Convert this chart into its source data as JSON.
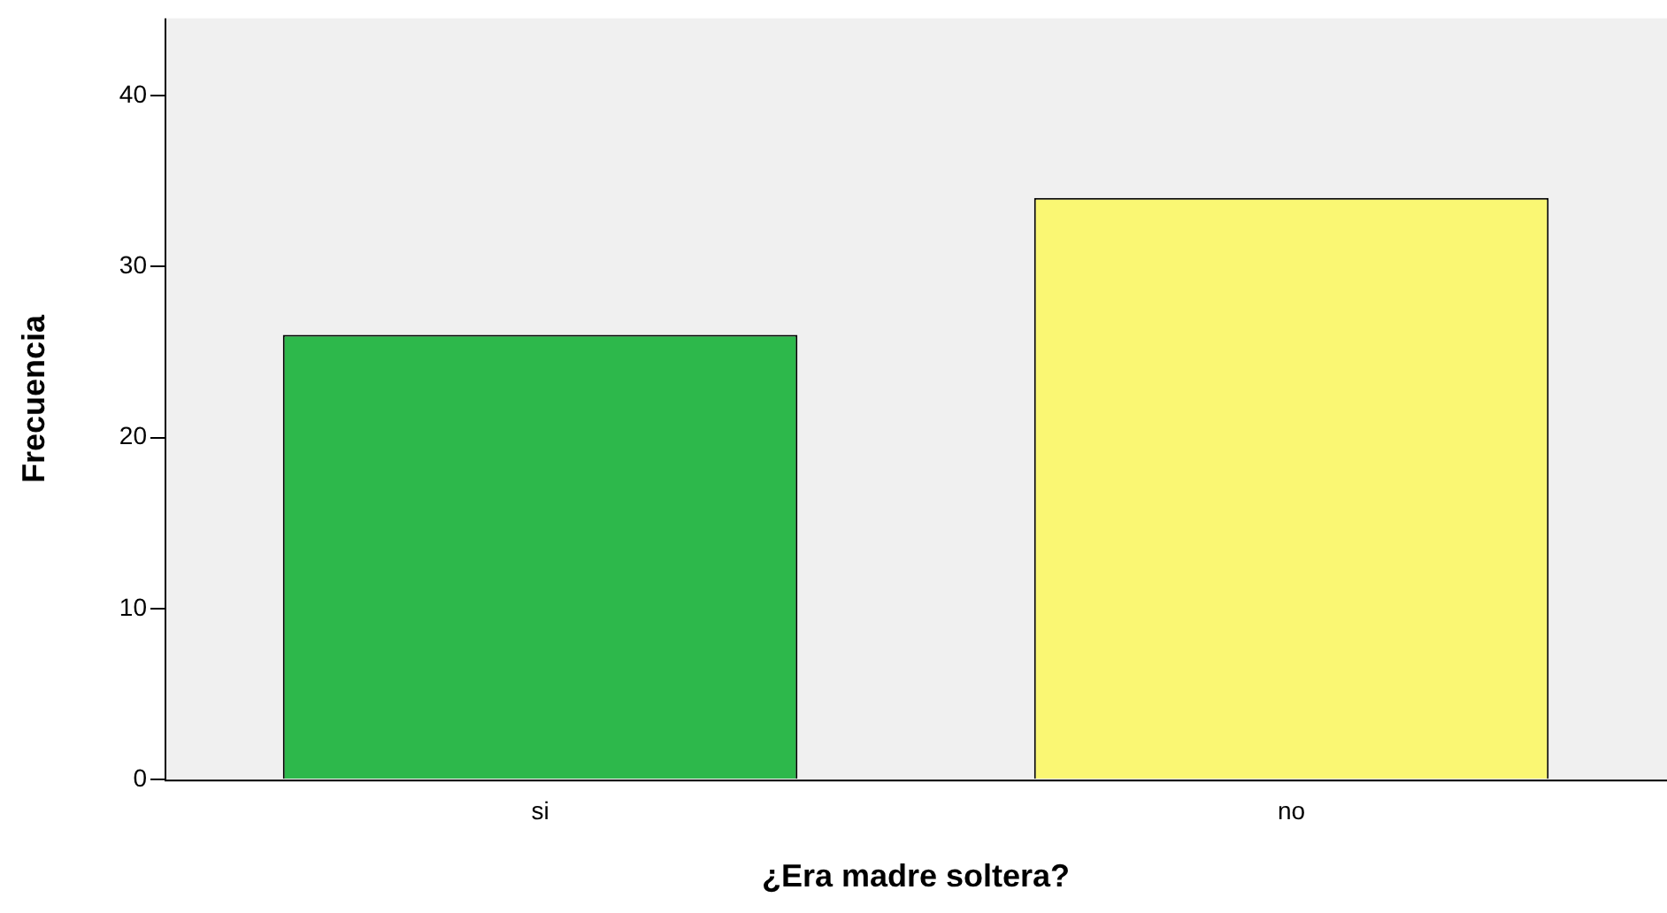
{
  "chart_data": {
    "type": "bar",
    "xlabel": "¿Era madre soltera?",
    "ylabel": "Frecuencia",
    "categories": [
      "si",
      "no"
    ],
    "values": [
      26,
      34
    ],
    "colors": [
      "#2db84b",
      "#faf773"
    ],
    "ylim": [
      0,
      44.5
    ],
    "yticks": [
      0,
      10,
      20,
      30,
      40
    ],
    "grid": false,
    "legend": false
  }
}
